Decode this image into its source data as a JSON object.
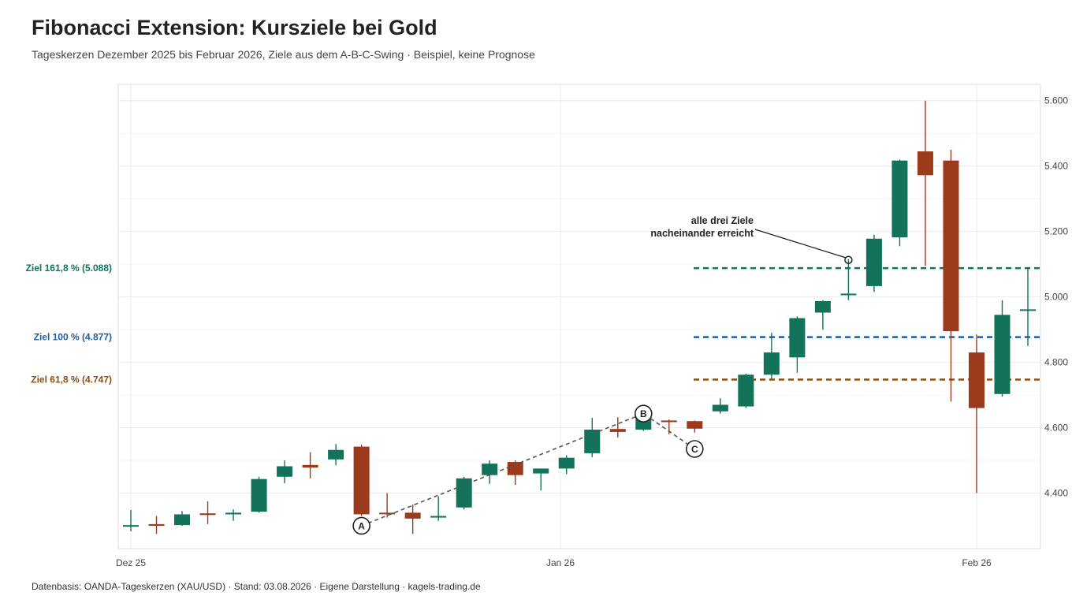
{
  "header": {
    "title": "Fibonacci Extension: Kursziele bei Gold",
    "subtitle": "Tageskerzen Dezember 2025 bis Februar 2026, Ziele aus dem A-B-C-Swing · Beispiel, keine Prognose"
  },
  "footer": {
    "caption": "Datenbasis: OANDA-Tageskerzen (XAU/USD) · Stand: 03.08.2026 · Eigene Darstellung · kagels-trading.de"
  },
  "colors": {
    "up": "#12725a",
    "down": "#9b3a1c",
    "target_1618": "#12725a",
    "target_100": "#1f5f9e",
    "target_618": "#8a4e12",
    "grid": "#ebebeb",
    "swing_line": "#555555"
  },
  "chart_data": {
    "type": "candlestick",
    "grid": true,
    "ylim": [
      4230,
      5650
    ],
    "y_ticks": [
      4400,
      4600,
      4800,
      5000,
      5200,
      5400,
      5600
    ],
    "y_tick_labels": [
      "4.400",
      "4.600",
      "4.800",
      "5.000",
      "5.200",
      "5.400",
      "5.600"
    ],
    "x_ticks": [
      {
        "date": "2025-12-25",
        "label": "Dez 25"
      },
      {
        "date": "2026-01-26",
        "label": "Jan 26"
      },
      {
        "date": "2026-02-26",
        "label": "Feb 26"
      }
    ],
    "candles": [
      {
        "date": "2025-12-25",
        "open": 4300,
        "high": 4348,
        "low": 4283,
        "close": 4302
      },
      {
        "date": "2025-12-26",
        "open": 4305,
        "high": 4330,
        "low": 4275,
        "close": 4300
      },
      {
        "date": "2025-12-29",
        "open": 4302,
        "high": 4345,
        "low": 4300,
        "close": 4335
      },
      {
        "date": "2025-12-30",
        "open": 4338,
        "high": 4375,
        "low": 4305,
        "close": 4333
      },
      {
        "date": "2025-12-31",
        "open": 4335,
        "high": 4350,
        "low": 4315,
        "close": 4340
      },
      {
        "date": "2026-01-01",
        "open": 4343,
        "high": 4450,
        "low": 4340,
        "close": 4443
      },
      {
        "date": "2026-01-02",
        "open": 4450,
        "high": 4500,
        "low": 4430,
        "close": 4482
      },
      {
        "date": "2026-01-05",
        "open": 4486,
        "high": 4525,
        "low": 4445,
        "close": 4478
      },
      {
        "date": "2026-01-06",
        "open": 4503,
        "high": 4550,
        "low": 4485,
        "close": 4532
      },
      {
        "date": "2026-01-07",
        "open": 4542,
        "high": 4548,
        "low": 4330,
        "close": 4335
      },
      {
        "date": "2026-01-08",
        "open": 4340,
        "high": 4400,
        "low": 4325,
        "close": 4337
      },
      {
        "date": "2026-01-09",
        "open": 4340,
        "high": 4365,
        "low": 4275,
        "close": 4322
      },
      {
        "date": "2026-01-12",
        "open": 4325,
        "high": 4390,
        "low": 4315,
        "close": 4330
      },
      {
        "date": "2026-01-13",
        "open": 4356,
        "high": 4450,
        "low": 4350,
        "close": 4445
      },
      {
        "date": "2026-01-14",
        "open": 4455,
        "high": 4500,
        "low": 4428,
        "close": 4490
      },
      {
        "date": "2026-01-15",
        "open": 4495,
        "high": 4500,
        "low": 4425,
        "close": 4455
      },
      {
        "date": "2026-01-16",
        "open": 4460,
        "high": 4475,
        "low": 4408,
        "close": 4475
      },
      {
        "date": "2026-01-19",
        "open": 4475,
        "high": 4515,
        "low": 4458,
        "close": 4508
      },
      {
        "date": "2026-01-20",
        "open": 4522,
        "high": 4630,
        "low": 4510,
        "close": 4594
      },
      {
        "date": "2026-01-21",
        "open": 4596,
        "high": 4632,
        "low": 4570,
        "close": 4587
      },
      {
        "date": "2026-01-22",
        "open": 4594,
        "high": 4645,
        "low": 4590,
        "close": 4632
      },
      {
        "date": "2026-01-23",
        "open": 4622,
        "high": 4625,
        "low": 4580,
        "close": 4617
      },
      {
        "date": "2026-01-26",
        "open": 4620,
        "high": 4622,
        "low": 4585,
        "close": 4597
      },
      {
        "date": "2026-01-27",
        "open": 4650,
        "high": 4690,
        "low": 4643,
        "close": 4670
      },
      {
        "date": "2026-01-28",
        "open": 4665,
        "high": 4765,
        "low": 4660,
        "close": 4762
      },
      {
        "date": "2026-01-29",
        "open": 4762,
        "high": 4890,
        "low": 4750,
        "close": 4830
      },
      {
        "date": "2026-01-30",
        "open": 4815,
        "high": 4940,
        "low": 4768,
        "close": 4935
      },
      {
        "date": "2026-02-02",
        "open": 4952,
        "high": 4990,
        "low": 4900,
        "close": 4987
      },
      {
        "date": "2026-02-03",
        "open": 5010,
        "high": 5115,
        "low": 4990,
        "close": 5010
      },
      {
        "date": "2026-02-04",
        "open": 5033,
        "high": 5190,
        "low": 5015,
        "close": 5178
      },
      {
        "date": "2026-02-05",
        "open": 5182,
        "high": 5420,
        "low": 5155,
        "close": 5417
      },
      {
        "date": "2026-02-06",
        "open": 5445,
        "high": 5600,
        "low": 5095,
        "close": 5372
      },
      {
        "date": "2026-02-09",
        "open": 5417,
        "high": 5450,
        "low": 4680,
        "close": 4895
      },
      {
        "date": "2026-02-10",
        "open": 4830,
        "high": 4885,
        "low": 4400,
        "close": 4660
      },
      {
        "date": "2026-02-11",
        "open": 4703,
        "high": 4990,
        "low": 4695,
        "close": 4945
      },
      {
        "date": "2026-02-12",
        "open": 4960,
        "high": 5085,
        "low": 4850,
        "close": 4962
      }
    ],
    "swing": {
      "points": [
        {
          "label": "A",
          "date": "2026-01-07",
          "value": 4300
        },
        {
          "label": "B",
          "date": "2026-01-22",
          "value": 4643
        },
        {
          "label": "C",
          "date": "2026-01-26",
          "value": 4535
        }
      ]
    },
    "targets": [
      {
        "label": "Ziel 161,8 % (5.088)",
        "value": 5088,
        "color_key": "target_1618"
      },
      {
        "label": "Ziel 100 % (4.877)",
        "value": 4877,
        "color_key": "target_100"
      },
      {
        "label": "Ziel 61,8 % (4.747)",
        "value": 4747,
        "color_key": "target_618"
      }
    ],
    "annotation": {
      "lines": [
        "alle drei Ziele",
        "nacheinander erreicht"
      ],
      "point_date": "2026-02-03",
      "point_value": 5113
    }
  }
}
